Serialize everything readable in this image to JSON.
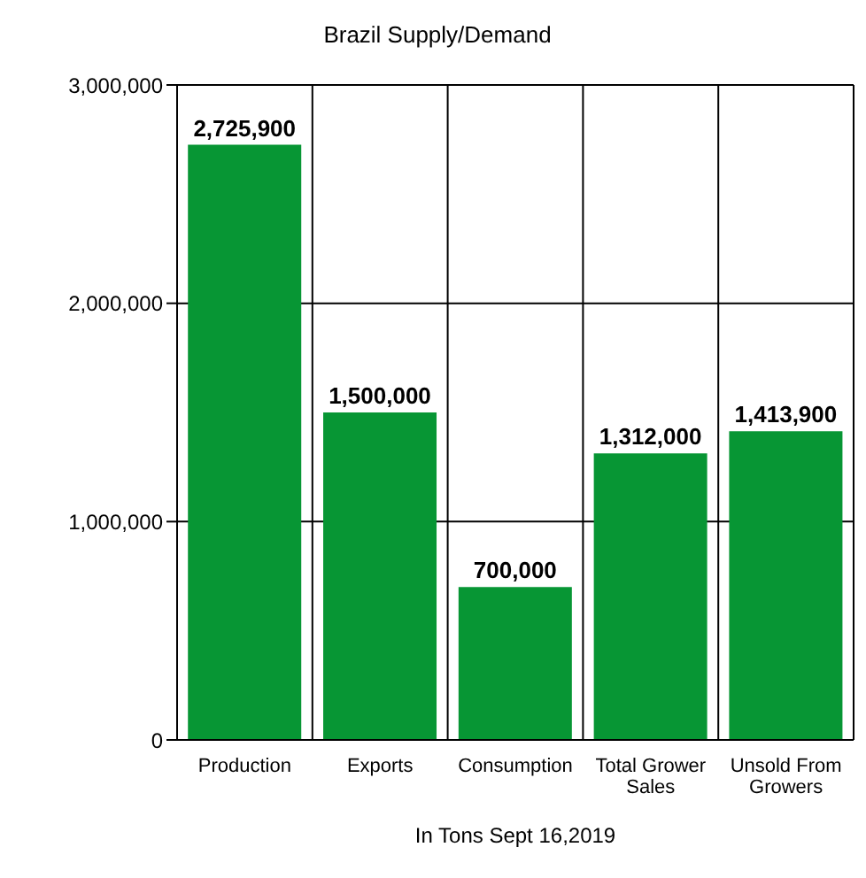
{
  "chart_data": {
    "type": "bar",
    "title": "Brazil  Supply/Demand",
    "xlabel": "In Tons  Sept 16,2019",
    "categories": [
      "Production",
      "Exports",
      "Consumption",
      "Total Grower Sales",
      "Unsold From Growers"
    ],
    "values": [
      2725900,
      1500000,
      700000,
      1312000,
      1413900
    ],
    "color": "#079634",
    "value_labels": [
      "2,725,900",
      "1,500,000",
      "700,000",
      "1,312,000",
      "1,413,900"
    ],
    "ylim": [
      0,
      3000000
    ],
    "yticks": [
      0,
      {
        "value": 1000000,
        "label": "1,000,000"
      },
      {
        "value": 2000000,
        "label": "2,000,000"
      },
      {
        "value": 3000000,
        "label": "3,000,000"
      }
    ],
    "grid": true
  }
}
